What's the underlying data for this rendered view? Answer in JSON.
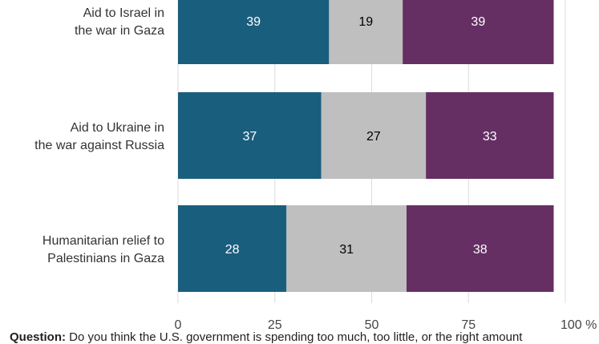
{
  "chart_data": {
    "type": "bar",
    "orientation": "horizontal",
    "stacked": true,
    "categories": [
      [
        "Aid to Israel in",
        "the war in Gaza"
      ],
      [
        "Aid to Ukraine in",
        "the war against Russia"
      ],
      [
        "Humanitarian relief to",
        "Palestinians in Gaza"
      ]
    ],
    "series": [
      {
        "values": [
          39,
          37,
          28
        ],
        "color": "#1a5e7e",
        "label_color": "#ffffff"
      },
      {
        "values": [
          19,
          27,
          31
        ],
        "color": "#bfbfbf",
        "label_color": "#000000"
      },
      {
        "values": [
          39,
          33,
          38
        ],
        "color": "#652f63",
        "label_color": "#ffffff"
      }
    ],
    "xlim": [
      0,
      100
    ],
    "xticks": [
      "0",
      "25",
      "50",
      "75",
      "100 %"
    ],
    "grid": true
  },
  "footer": {
    "question_label": "Question:",
    "question_text": "Do you think the U.S. government is spending too much, too little, or the right amount"
  }
}
